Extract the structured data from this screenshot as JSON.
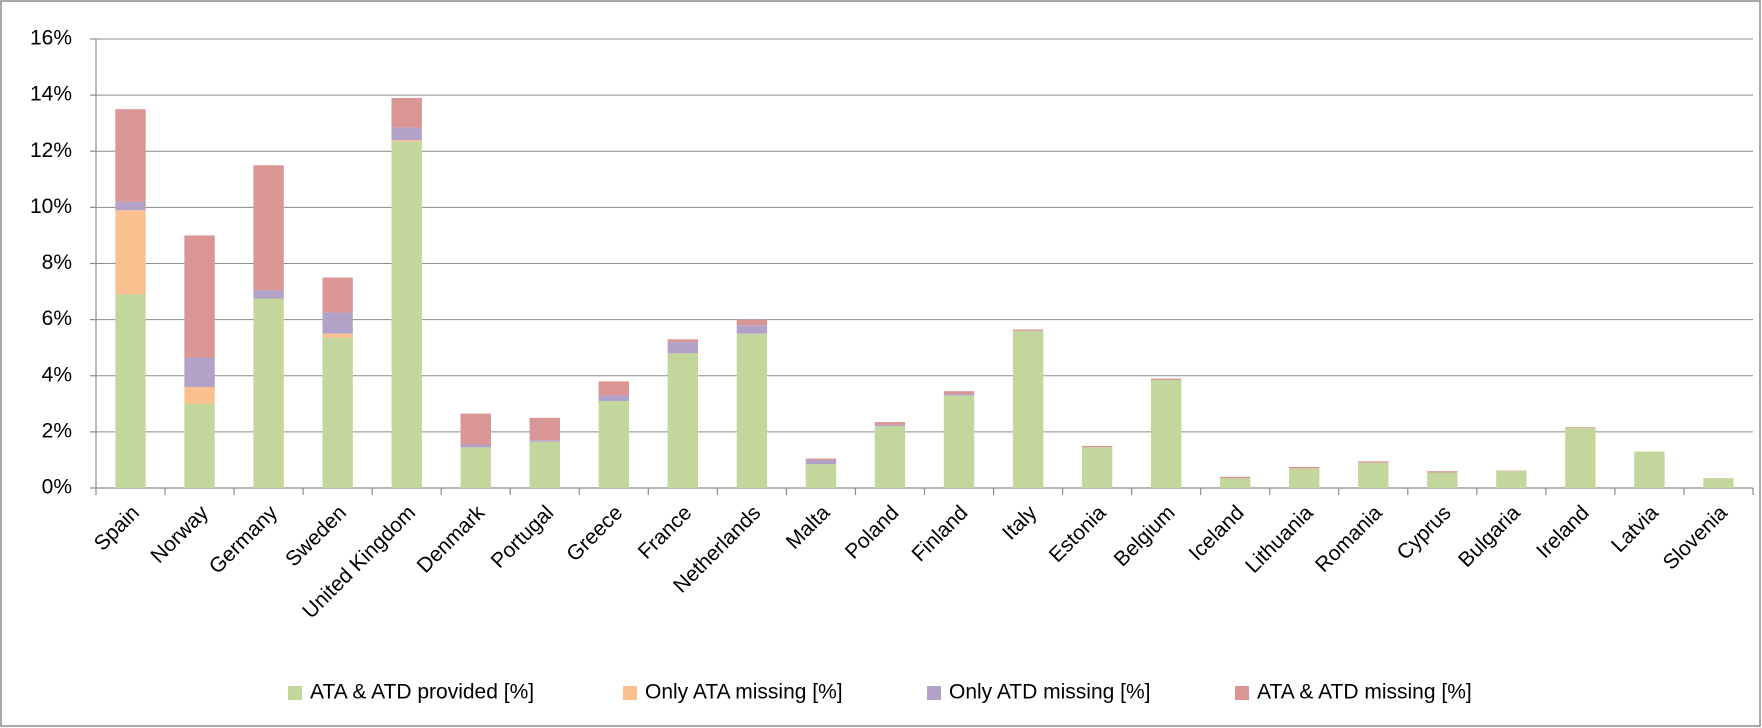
{
  "chart_data": {
    "type": "bar",
    "stacked": true,
    "categories": [
      "Spain",
      "Norway",
      "Germany",
      "Sweden",
      "United Kingdom",
      "Denmark",
      "Portugal",
      "Greece",
      "France",
      "Netherlands",
      "Malta",
      "Poland",
      "Finland",
      "Italy",
      "Estonia",
      "Belgium",
      "Iceland",
      "Lithuania",
      "Romania",
      "Cyprus",
      "Bulgaria",
      "Ireland",
      "Latvia",
      "Slovenia"
    ],
    "series": [
      {
        "name": "ATA & ATD provided [%]",
        "color": "#c3d69b",
        "values": [
          6.9,
          3.0,
          6.75,
          5.35,
          12.35,
          1.45,
          1.65,
          3.1,
          4.8,
          5.5,
          0.85,
          2.2,
          3.3,
          5.6,
          1.45,
          3.85,
          0.35,
          0.7,
          0.9,
          0.55,
          0.6,
          2.15,
          1.3,
          0.35
        ]
      },
      {
        "name": "Only ATA missing [%]",
        "color": "#fac090",
        "values": [
          3.0,
          0.6,
          0,
          0.15,
          0.05,
          0,
          0,
          0,
          0,
          0,
          0,
          0,
          0,
          0,
          0,
          0,
          0,
          0,
          0,
          0,
          0,
          0,
          0,
          0
        ]
      },
      {
        "name": "Only ATD missing [%]",
        "color": "#b3a2c7",
        "values": [
          0.3,
          1.05,
          0.3,
          0.75,
          0.45,
          0.1,
          0.05,
          0.2,
          0.4,
          0.3,
          0.15,
          0.05,
          0.05,
          0,
          0,
          0,
          0,
          0,
          0,
          0,
          0,
          0,
          0,
          0
        ]
      },
      {
        "name": "ATA & ATD missing [%]",
        "color": "#d99694",
        "values": [
          3.3,
          4.35,
          4.45,
          1.25,
          1.05,
          1.1,
          0.8,
          0.5,
          0.1,
          0.2,
          0.05,
          0.1,
          0.1,
          0.05,
          0.05,
          0.05,
          0.05,
          0.05,
          0.05,
          0.05,
          0.02,
          0.02,
          0,
          0
        ]
      }
    ],
    "ylim": [
      0,
      16
    ],
    "yticks": [
      {
        "value": 0,
        "label": "0%"
      },
      {
        "value": 2,
        "label": "2%"
      },
      {
        "value": 4,
        "label": "4%"
      },
      {
        "value": 6,
        "label": "6%"
      },
      {
        "value": 8,
        "label": "8%"
      },
      {
        "value": 10,
        "label": "10%"
      },
      {
        "value": 12,
        "label": "12%"
      },
      {
        "value": 14,
        "label": "14%"
      },
      {
        "value": 16,
        "label": "16%"
      }
    ],
    "grid": true,
    "legend": "bottom"
  }
}
